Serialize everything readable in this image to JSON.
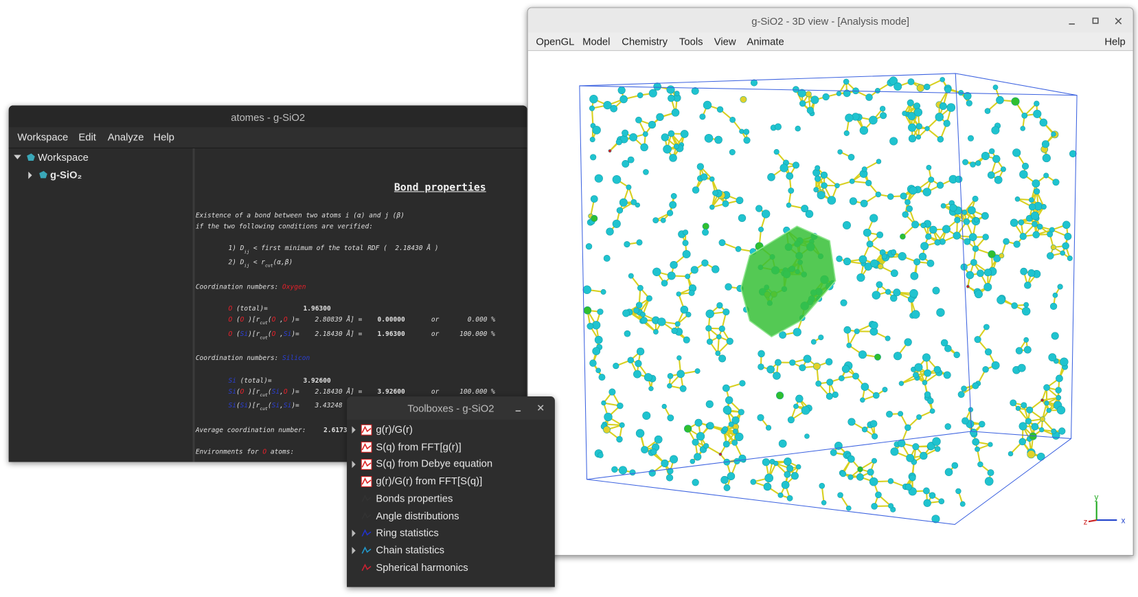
{
  "main_window": {
    "title": "atomes - g-SiO2",
    "menu": [
      "Workspace",
      "Edit",
      "Analyze",
      "Help"
    ],
    "tree": {
      "root": "Workspace",
      "project": "g-SiO₂"
    },
    "report": {
      "title": "Bond properties",
      "lines": [
        [
          "Existence of a bond between two atoms i (α) and j (β)"
        ],
        [
          "if the two following conditions are verified:"
        ],
        [
          "1) D",
          "ij",
          " < first minimum of the total RDF (  2.18430 Å )"
        ],
        [
          "2) D",
          "ij",
          " < r",
          "cut",
          "(α,β)"
        ],
        [
          "Coordination numbers: ",
          "Oxygen"
        ],
        [
          "O",
          " (total)=",
          "1.96300"
        ],
        [
          "O",
          " (",
          "O",
          " )[r",
          "cut",
          "(",
          "O",
          " ,",
          "O",
          " )=",
          "2.80839 Å] =",
          "0.00000",
          "or",
          "0.000 %"
        ],
        [
          "O",
          " (",
          "Si",
          ")[r",
          "cut",
          "(",
          "O",
          " ,",
          "Si",
          ")=",
          "2.18430 Å] =",
          "1.96300",
          "or",
          "100.000 %"
        ],
        [
          "Coordination numbers: ",
          "Silicon"
        ],
        [
          "Si",
          " (total)=",
          "3.92600"
        ],
        [
          "Si",
          "(",
          "O",
          " )[r",
          "cut",
          "(",
          "Si",
          ",",
          "O",
          " )=",
          "2.18430 Å] =",
          "3.92600",
          "or",
          "100.000 %"
        ],
        [
          "Si",
          "(",
          "Si",
          ")[r",
          "cut",
          "(",
          "Si",
          ",",
          "Si",
          ")=",
          "3.43248"
        ],
        [
          "Average coordination number:",
          "2.6173"
        ],
        [
          "Environments for ",
          "O",
          " atoms:"
        ]
      ]
    }
  },
  "view_window": {
    "title": "g-SiO2 - 3D view - [Analysis mode]",
    "menu": [
      "OpenGL",
      "Model",
      "Chemistry",
      "Tools",
      "View",
      "Animate"
    ],
    "help": "Help",
    "axes": {
      "x": "x",
      "y": "y",
      "z": "z"
    }
  },
  "toolbox": {
    "title": "Toolboxes - g-SiO2",
    "items": [
      "g(r)/G(r)",
      "S(q) from FFT[g(r)]",
      "S(q) from Debye equation",
      "g(r)/G(r) from FFT[S(q)]",
      "Bonds properties",
      "Angle distributions",
      "Ring statistics",
      "Chain statistics",
      "Spherical harmonics"
    ]
  }
}
